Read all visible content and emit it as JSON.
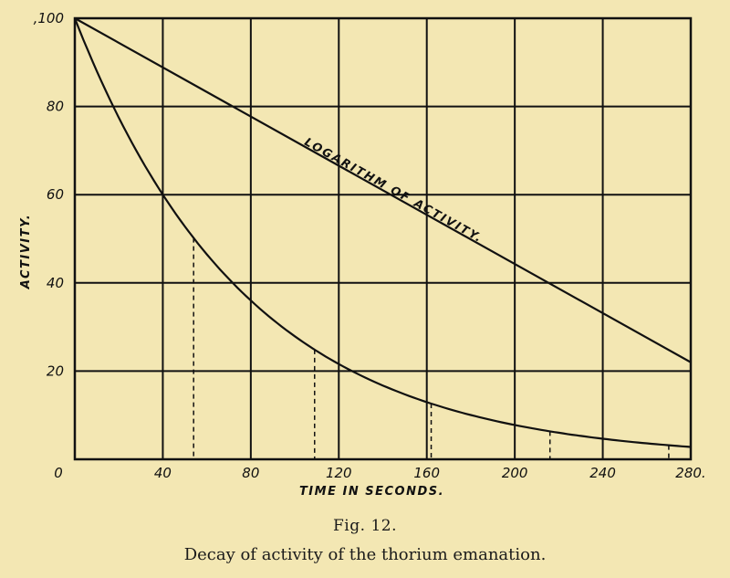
{
  "figure": {
    "number": "Fig. 12.",
    "caption": "Decay of activity of the thorium emanation."
  },
  "chart_data": {
    "type": "line",
    "xlabel": "TIME IN SECONDS.",
    "ylabel": "ACTIVITY.",
    "xlim": [
      0,
      280
    ],
    "ylim": [
      0,
      100
    ],
    "x_ticks": [
      "40",
      "80",
      "120",
      "160",
      "200",
      "240",
      "280."
    ],
    "y_ticks": [
      "20",
      "40",
      "60",
      "80",
      ",100"
    ],
    "origin_label": "0",
    "grid": true,
    "series": [
      {
        "name": "",
        "x": [
          0,
          20,
          40,
          60,
          80,
          100,
          120,
          140,
          160,
          180,
          200,
          220,
          240,
          260,
          280
        ],
        "y": [
          100,
          77,
          60,
          46,
          36,
          28,
          21,
          16,
          12.5,
          9.5,
          7.5,
          5.8,
          4.5,
          3.3,
          2.5
        ]
      },
      {
        "name": "LOGARITHM OF ACTIVITY.",
        "x": [
          0,
          280
        ],
        "y": [
          100,
          22
        ]
      }
    ],
    "half_period_markers_x": [
      54,
      109,
      162,
      216,
      270
    ]
  }
}
